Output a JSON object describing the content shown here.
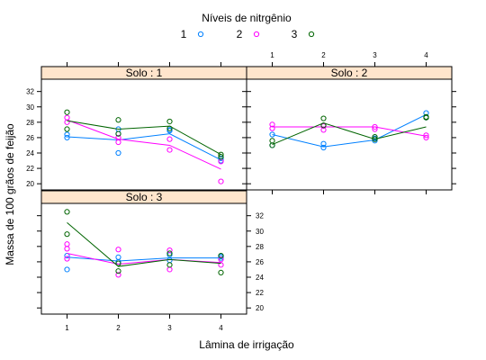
{
  "colors": {
    "n1": "#0080ff",
    "n2": "#ff00ff",
    "n3": "#006400",
    "strip_bg": "#ffe5cc"
  },
  "chart_data": {
    "type": "scatter",
    "xlabel": "Lâmina de irrigação",
    "ylabel": "Massa de 100 grãos de feijão",
    "legend": {
      "title": "Níveis de nitrgênio",
      "placement": "top",
      "entries": [
        "1",
        "2",
        "3"
      ]
    },
    "x_ticks": [
      "1",
      "2",
      "3",
      "4"
    ],
    "y_ticks": [
      "20",
      "22",
      "24",
      "26",
      "28",
      "30",
      "32"
    ],
    "xlim": [
      0.5,
      4.5
    ],
    "ylim": [
      19.2,
      33.6
    ],
    "grid": false,
    "panels": [
      {
        "strip": "Solo : 1",
        "series": [
          {
            "name": "1",
            "points": [
              [
                1,
                26.0
              ],
              [
                1,
                26.4
              ],
              [
                2,
                24.0
              ],
              [
                2,
                26.5
              ],
              [
                2,
                27.1
              ],
              [
                3,
                26.9
              ],
              [
                3,
                27.0
              ],
              [
                4,
                23.0
              ],
              [
                4,
                23.3
              ]
            ],
            "line": [
              [
                1,
                26.1
              ],
              [
                2,
                25.7
              ],
              [
                3,
                26.5
              ],
              [
                4,
                23.1
              ]
            ]
          },
          {
            "name": "2",
            "points": [
              [
                1,
                28.0
              ],
              [
                1,
                28.6
              ],
              [
                2,
                25.4
              ],
              [
                2,
                26.0
              ],
              [
                3,
                24.4
              ],
              [
                3,
                25.8
              ],
              [
                4,
                20.3
              ],
              [
                4,
                22.9
              ]
            ],
            "line": [
              [
                1,
                28.3
              ],
              [
                2,
                25.8
              ],
              [
                3,
                25.0
              ],
              [
                4,
                21.9
              ]
            ]
          },
          {
            "name": "3",
            "points": [
              [
                1,
                27.1
              ],
              [
                1,
                29.3
              ],
              [
                2,
                26.5
              ],
              [
                2,
                28.3
              ],
              [
                3,
                27.2
              ],
              [
                3,
                28.1
              ],
              [
                4,
                23.5
              ],
              [
                4,
                23.8
              ]
            ],
            "line": [
              [
                1,
                28.2
              ],
              [
                2,
                27.1
              ],
              [
                3,
                27.5
              ],
              [
                4,
                23.8
              ]
            ]
          }
        ]
      },
      {
        "strip": "Solo : 2",
        "series": [
          {
            "name": "1",
            "points": [
              [
                1,
                25.0
              ],
              [
                1,
                26.4
              ],
              [
                2,
                24.7
              ],
              [
                2,
                25.2
              ],
              [
                3,
                25.6
              ],
              [
                3,
                25.9
              ],
              [
                4,
                28.6
              ],
              [
                4,
                29.2
              ]
            ],
            "line": [
              [
                1,
                26.4
              ],
              [
                2,
                24.8
              ],
              [
                3,
                25.7
              ],
              [
                4,
                29.0
              ]
            ]
          },
          {
            "name": "2",
            "points": [
              [
                1,
                27.2
              ],
              [
                1,
                27.7
              ],
              [
                2,
                27.0
              ],
              [
                2,
                27.5
              ],
              [
                3,
                27.1
              ],
              [
                3,
                27.4
              ],
              [
                4,
                26.0
              ],
              [
                4,
                26.3
              ]
            ],
            "line": [
              [
                1,
                27.4
              ],
              [
                2,
                27.4
              ],
              [
                3,
                27.4
              ],
              [
                4,
                26.2
              ]
            ]
          },
          {
            "name": "3",
            "points": [
              [
                1,
                25.0
              ],
              [
                1,
                25.6
              ],
              [
                2,
                27.6
              ],
              [
                2,
                28.5
              ],
              [
                3,
                25.8
              ],
              [
                3,
                26.1
              ],
              [
                4,
                28.6
              ],
              [
                4,
                28.7
              ]
            ],
            "line": [
              [
                1,
                25.1
              ],
              [
                2,
                27.9
              ],
              [
                3,
                25.8
              ],
              [
                4,
                27.4
              ]
            ]
          }
        ]
      },
      {
        "strip": "Solo : 3",
        "series": [
          {
            "name": "1",
            "points": [
              [
                1,
                25.0
              ],
              [
                1,
                26.8
              ],
              [
                2,
                26.0
              ],
              [
                2,
                26.6
              ],
              [
                3,
                26.2
              ],
              [
                3,
                26.9
              ],
              [
                4,
                26.5
              ],
              [
                4,
                26.7
              ]
            ],
            "line": [
              [
                1,
                26.6
              ],
              [
                2,
                26.1
              ],
              [
                3,
                26.5
              ],
              [
                4,
                26.5
              ]
            ]
          },
          {
            "name": "2",
            "points": [
              [
                1,
                26.4
              ],
              [
                1,
                27.7
              ],
              [
                1,
                28.3
              ],
              [
                2,
                24.3
              ],
              [
                2,
                27.6
              ],
              [
                3,
                25.0
              ],
              [
                3,
                27.5
              ],
              [
                4,
                25.6
              ],
              [
                4,
                26.3
              ]
            ],
            "line": [
              [
                1,
                27.1
              ],
              [
                2,
                25.7
              ],
              [
                3,
                26.3
              ],
              [
                4,
                25.9
              ]
            ]
          },
          {
            "name": "3",
            "points": [
              [
                1,
                29.6
              ],
              [
                1,
                32.5
              ],
              [
                2,
                24.8
              ],
              [
                2,
                25.8
              ],
              [
                3,
                25.6
              ],
              [
                3,
                27.1
              ],
              [
                4,
                24.6
              ],
              [
                4,
                26.8
              ]
            ],
            "line": [
              [
                1,
                31.1
              ],
              [
                2,
                25.4
              ],
              [
                3,
                26.3
              ],
              [
                4,
                25.8
              ]
            ]
          }
        ]
      }
    ]
  }
}
